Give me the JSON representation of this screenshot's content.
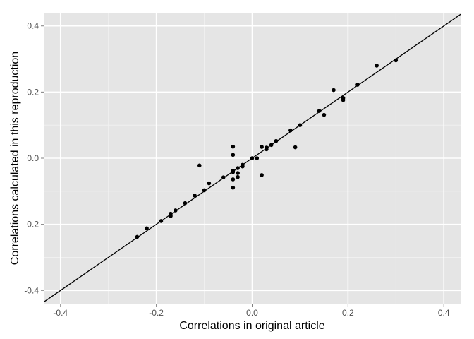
{
  "chart_data": {
    "type": "scatter",
    "xlabel": "Correlations in original article",
    "ylabel": "Correlations calculated in this reproduction",
    "xlim": [
      -0.435,
      0.435
    ],
    "ylim": [
      -0.44,
      0.44
    ],
    "x_ticks": [
      -0.4,
      -0.2,
      0.0,
      0.2,
      0.4
    ],
    "y_ticks": [
      -0.4,
      -0.2,
      0.0,
      0.2,
      0.4
    ],
    "x_tick_labels": [
      "-0.4",
      "-0.2",
      "0.0",
      "0.2",
      "0.4"
    ],
    "y_tick_labels": [
      "-0.4",
      "-0.2",
      "0.0",
      "0.2",
      "0.4"
    ],
    "grid": true,
    "reference_line": {
      "slope": 1,
      "intercept": 0
    },
    "colors": {
      "panel_background": "#e5e5e5",
      "grid_major": "#ffffff",
      "grid_minor": "#f2f2f2",
      "point": "#000000",
      "line": "#000000"
    },
    "points": [
      {
        "x": -0.24,
        "y": -0.238
      },
      {
        "x": -0.22,
        "y": -0.212
      },
      {
        "x": -0.19,
        "y": -0.19
      },
      {
        "x": -0.17,
        "y": -0.168
      },
      {
        "x": -0.17,
        "y": -0.175
      },
      {
        "x": -0.16,
        "y": -0.158
      },
      {
        "x": -0.14,
        "y": -0.136
      },
      {
        "x": -0.12,
        "y": -0.113
      },
      {
        "x": -0.11,
        "y": -0.022
      },
      {
        "x": -0.1,
        "y": -0.097
      },
      {
        "x": -0.09,
        "y": -0.076
      },
      {
        "x": -0.06,
        "y": -0.058
      },
      {
        "x": -0.04,
        "y": 0.035
      },
      {
        "x": -0.04,
        "y": 0.01
      },
      {
        "x": -0.04,
        "y": -0.038
      },
      {
        "x": -0.04,
        "y": -0.042
      },
      {
        "x": -0.04,
        "y": -0.064
      },
      {
        "x": -0.04,
        "y": -0.089
      },
      {
        "x": -0.03,
        "y": -0.03
      },
      {
        "x": -0.03,
        "y": -0.045
      },
      {
        "x": -0.03,
        "y": -0.057
      },
      {
        "x": -0.02,
        "y": -0.02
      },
      {
        "x": -0.02,
        "y": -0.025
      },
      {
        "x": 0.0,
        "y": 0.0
      },
      {
        "x": 0.01,
        "y": 0.0
      },
      {
        "x": 0.02,
        "y": 0.034
      },
      {
        "x": 0.02,
        "y": -0.051
      },
      {
        "x": 0.03,
        "y": 0.032
      },
      {
        "x": 0.03,
        "y": 0.027
      },
      {
        "x": 0.04,
        "y": 0.04
      },
      {
        "x": 0.05,
        "y": 0.052
      },
      {
        "x": 0.08,
        "y": 0.084
      },
      {
        "x": 0.09,
        "y": 0.033
      },
      {
        "x": 0.1,
        "y": 0.1
      },
      {
        "x": 0.14,
        "y": 0.143
      },
      {
        "x": 0.15,
        "y": 0.131
      },
      {
        "x": 0.17,
        "y": 0.206
      },
      {
        "x": 0.19,
        "y": 0.182
      },
      {
        "x": 0.19,
        "y": 0.176
      },
      {
        "x": 0.22,
        "y": 0.222
      },
      {
        "x": 0.26,
        "y": 0.28
      },
      {
        "x": 0.3,
        "y": 0.296
      }
    ]
  }
}
